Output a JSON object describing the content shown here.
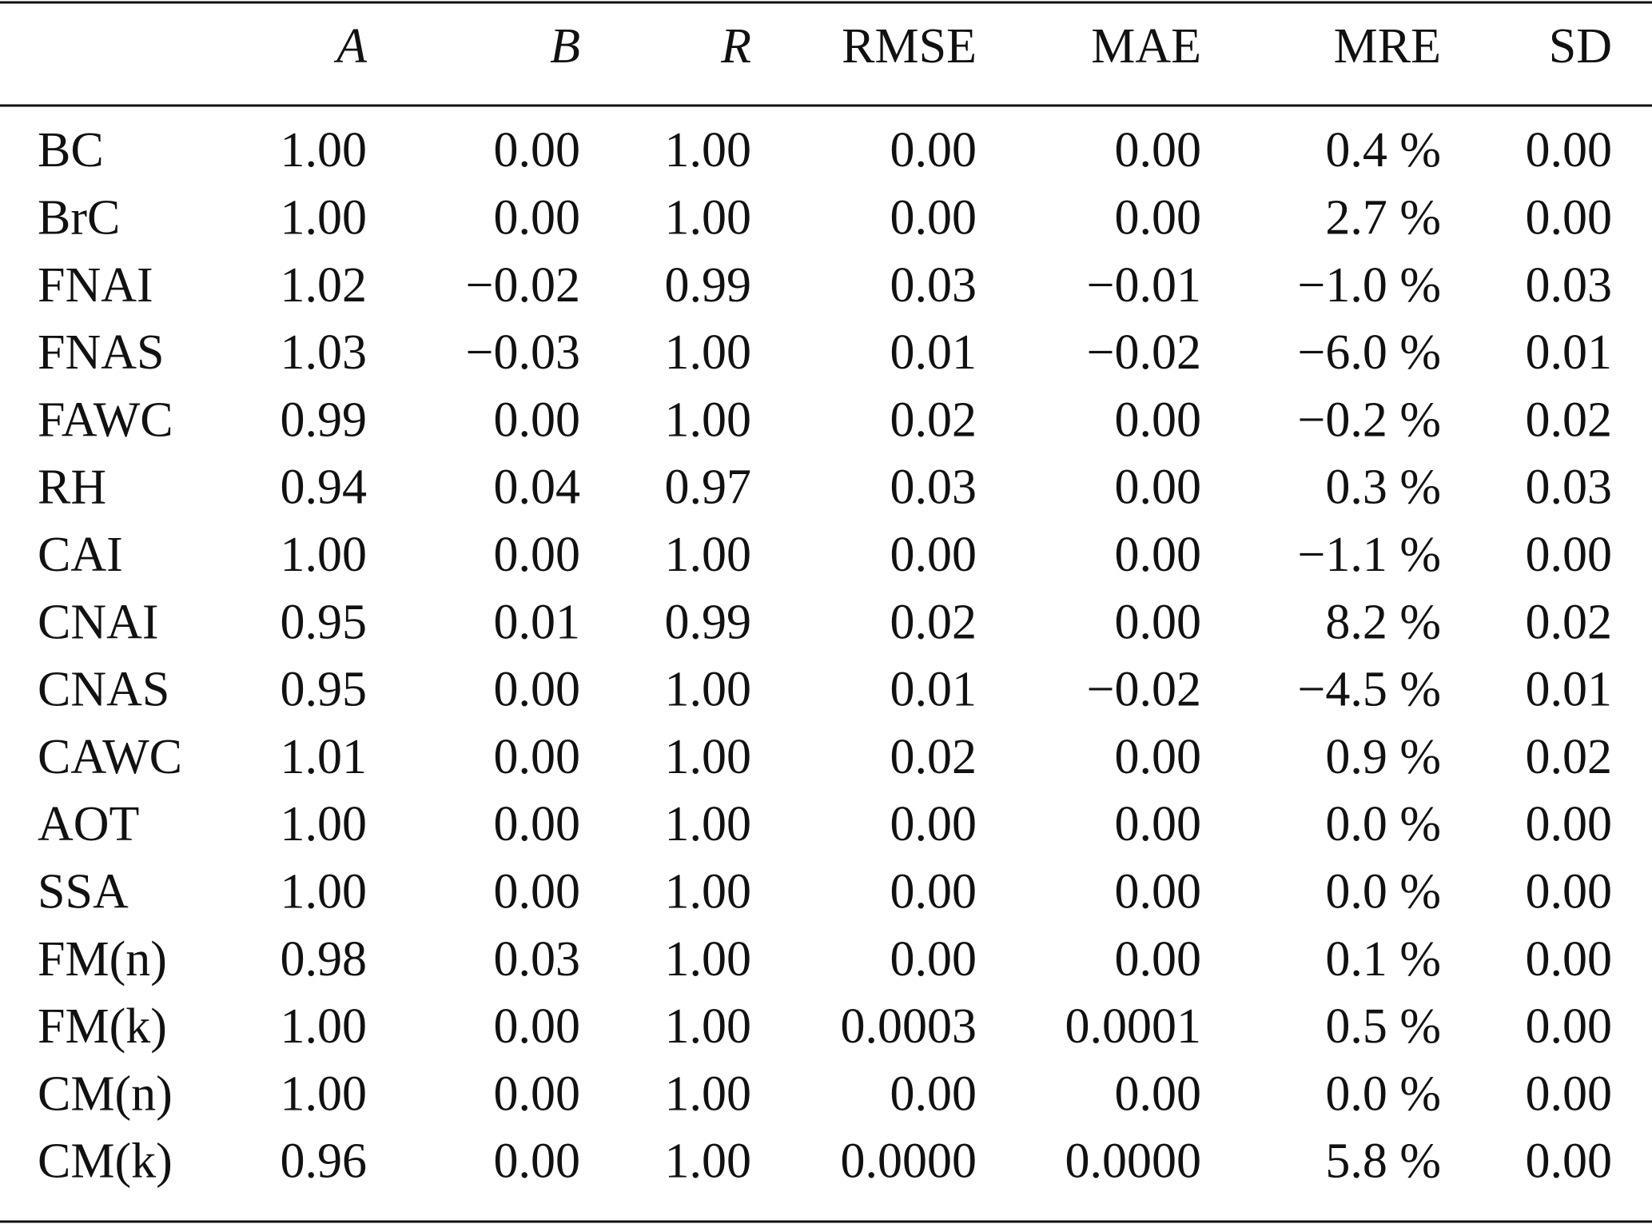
{
  "table": {
    "header": [
      "A",
      "B",
      "R",
      "RMSE",
      "MAE",
      "MRE",
      "SD"
    ],
    "rows": [
      [
        "BC",
        "1.00",
        "0.00",
        "1.00",
        "0.00",
        "0.00",
        "0.4 %",
        "0.00"
      ],
      [
        "BrC",
        "1.00",
        "0.00",
        "1.00",
        "0.00",
        "0.00",
        "2.7 %",
        "0.00"
      ],
      [
        "FNAI",
        "1.02",
        "−0.02",
        "0.99",
        "0.03",
        "−0.01",
        "−1.0 %",
        "0.03"
      ],
      [
        "FNAS",
        "1.03",
        "−0.03",
        "1.00",
        "0.01",
        "−0.02",
        "−6.0 %",
        "0.01"
      ],
      [
        "FAWC",
        "0.99",
        "0.00",
        "1.00",
        "0.02",
        "0.00",
        "−0.2 %",
        "0.02"
      ],
      [
        "RH",
        "0.94",
        "0.04",
        "0.97",
        "0.03",
        "0.00",
        "0.3 %",
        "0.03"
      ],
      [
        "CAI",
        "1.00",
        "0.00",
        "1.00",
        "0.00",
        "0.00",
        "−1.1 %",
        "0.00"
      ],
      [
        "CNAI",
        "0.95",
        "0.01",
        "0.99",
        "0.02",
        "0.00",
        "8.2 %",
        "0.02"
      ],
      [
        "CNAS",
        "0.95",
        "0.00",
        "1.00",
        "0.01",
        "−0.02",
        "−4.5 %",
        "0.01"
      ],
      [
        "CAWC",
        "1.01",
        "0.00",
        "1.00",
        "0.02",
        "0.00",
        "0.9 %",
        "0.02"
      ],
      [
        "AOT",
        "1.00",
        "0.00",
        "1.00",
        "0.00",
        "0.00",
        "0.0 %",
        "0.00"
      ],
      [
        "SSA",
        "1.00",
        "0.00",
        "1.00",
        "0.00",
        "0.00",
        "0.0 %",
        "0.00"
      ],
      [
        "FM(n)",
        "0.98",
        "0.03",
        "1.00",
        "0.00",
        "0.00",
        "0.1 %",
        "0.00"
      ],
      [
        "FM(k)",
        "1.00",
        "0.00",
        "1.00",
        "0.0003",
        "0.0001",
        "0.5 %",
        "0.00"
      ],
      [
        "CM(n)",
        "1.00",
        "0.00",
        "1.00",
        "0.00",
        "0.00",
        "0.0 %",
        "0.00"
      ],
      [
        "CM(k)",
        "0.96",
        "0.00",
        "1.00",
        "0.0000",
        "0.0000",
        "5.8 %",
        "0.00"
      ]
    ]
  }
}
